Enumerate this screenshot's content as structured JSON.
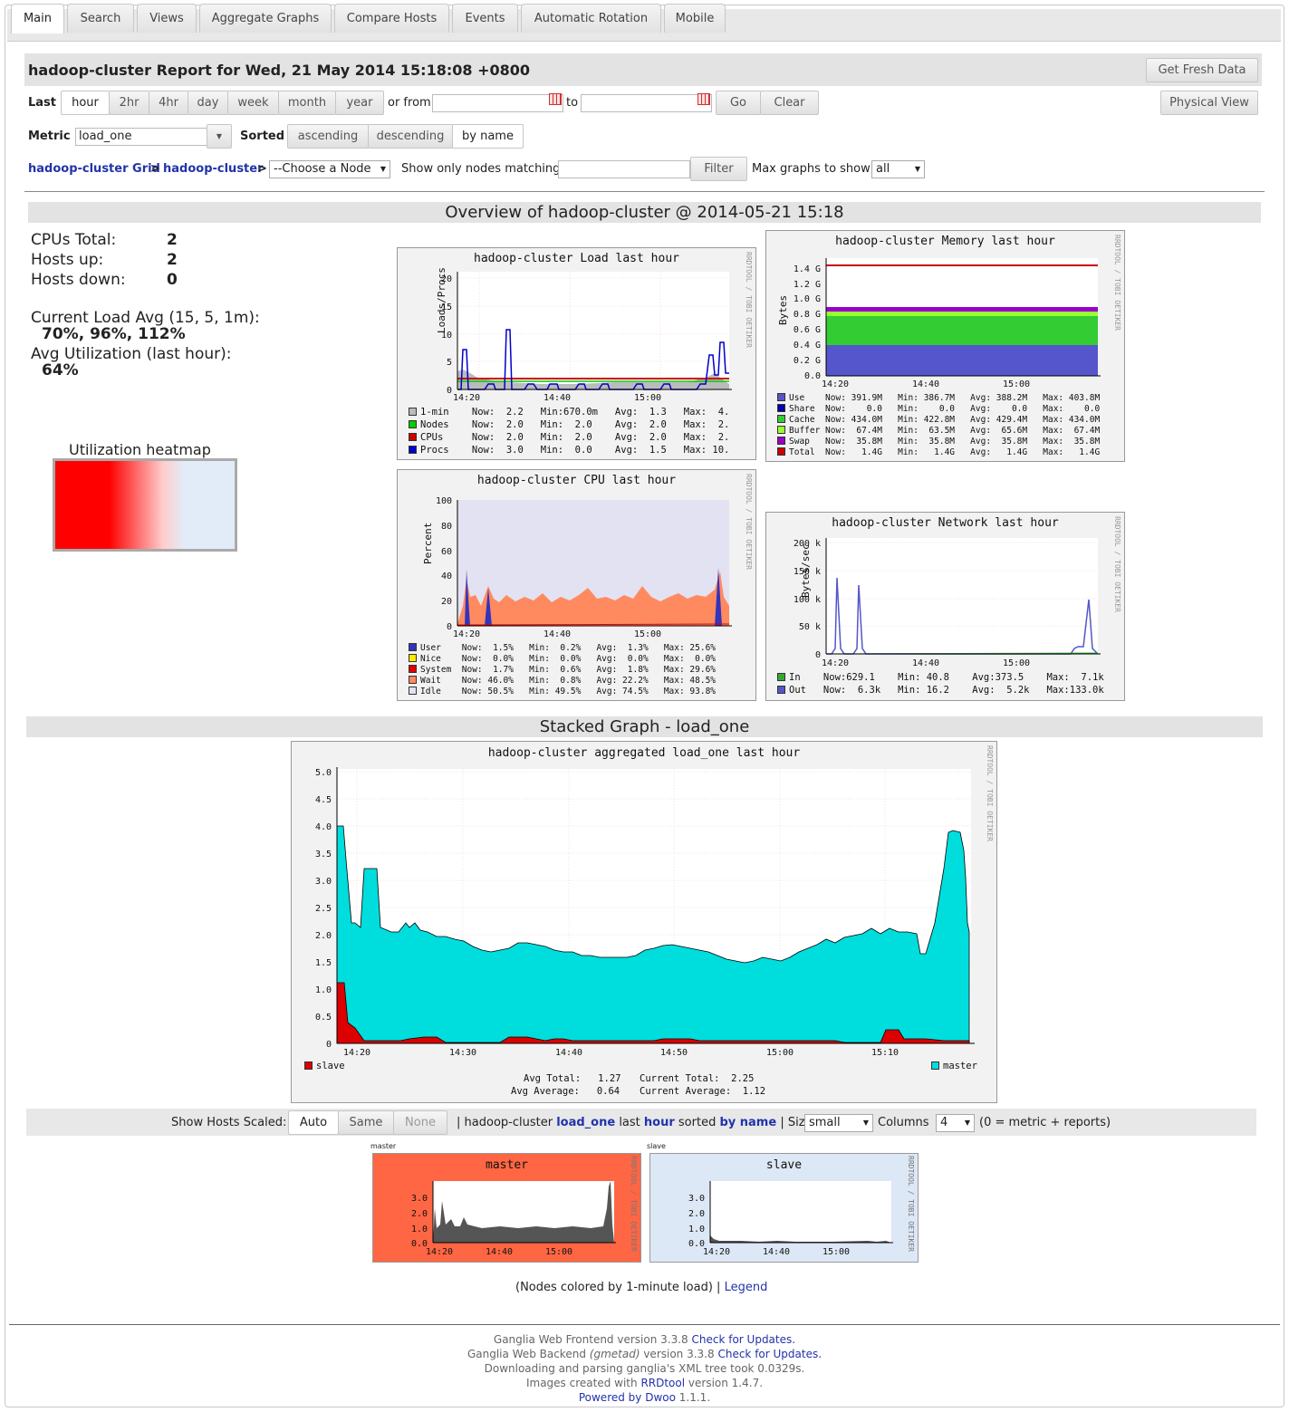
{
  "tabs": [
    "Main",
    "Search",
    "Views",
    "Aggregate Graphs",
    "Compare Hosts",
    "Events",
    "Automatic Rotation",
    "Mobile"
  ],
  "report_title": "hadoop-cluster Report for Wed, 21 May 2014 15:18:08 +0800",
  "get_fresh_data": "Get Fresh Data",
  "physical_view": "Physical View",
  "last_label": "Last",
  "ranges": [
    "hour",
    "2hr",
    "4hr",
    "day",
    "week",
    "month",
    "year"
  ],
  "or_from": "or from",
  "to": "to",
  "go": "Go",
  "clear": "Clear",
  "metric_label": "Metric",
  "metric_value": "load_one",
  "sorted_label": "Sorted",
  "sort_options": [
    "ascending",
    "descending",
    "by name"
  ],
  "breadcrumb": {
    "grid": "hadoop-cluster Grid",
    "sep": ">",
    "cluster": "hadoop-cluster",
    "node_select": "--Choose a Node"
  },
  "show_only": "Show only nodes matching",
  "filter": "Filter",
  "max_graphs_label": "Max graphs to show",
  "max_graphs_value": "all",
  "overview_title": "Overview of hadoop-cluster @ 2014-05-21 15:18",
  "stats": {
    "cpus_label": "CPUs Total:",
    "cpus": "2",
    "up_label": "Hosts up:",
    "up": "2",
    "down_label": "Hosts down:",
    "down": "0",
    "load_label": "Current Load Avg (15, 5, 1m):",
    "load": "70%, 96%, 112%",
    "util_label": "Avg Utilization (last hour):",
    "util": "64%"
  },
  "heatmap_label": "Utilization heatmap",
  "rrd_text": "RRDTOOL / TOBI OETIKER",
  "graphs": {
    "load": {
      "title": "hadoop-cluster Load last hour",
      "ylabel": "Loads/Procs",
      "yticks": [
        "20",
        "15",
        "10",
        "5",
        "0"
      ],
      "xticks": [
        "14:20",
        "14:40",
        "15:00"
      ],
      "legend": [
        {
          "name": "1-min",
          "color": "#bbbbbb",
          "text": "1-min    Now:  2.2   Min:670.0m   Avg:  1.3   Max:  4."
        },
        {
          "name": "Nodes",
          "color": "#00cc00",
          "text": "Nodes    Now:  2.0   Min:  2.0    Avg:  2.0   Max:  2."
        },
        {
          "name": "CPUs",
          "color": "#cc0000",
          "text": "CPUs     Now:  2.0   Min:  2.0    Avg:  2.0   Max:  2."
        },
        {
          "name": "Procs",
          "color": "#0000cc",
          "text": "Procs    Now:  3.0   Min:  0.0    Avg:  1.5   Max: 10."
        }
      ]
    },
    "memory": {
      "title": "hadoop-cluster Memory last hour",
      "ylabel": "Bytes",
      "yticks": [
        "1.4 G",
        "1.2 G",
        "1.0 G",
        "0.8 G",
        "0.6 G",
        "0.4 G",
        "0.2 G",
        "0.0"
      ],
      "xticks": [
        "14:20",
        "14:40",
        "15:00"
      ],
      "legend": [
        {
          "name": "Use",
          "color": "#5555cc",
          "text": "Use    Now: 391.9M   Min: 386.7M   Avg: 388.2M   Max: 403.8M"
        },
        {
          "name": "Share",
          "color": "#0000aa",
          "text": "Share  Now:    0.0   Min:    0.0   Avg:    0.0   Max:    0.0"
        },
        {
          "name": "Cache",
          "color": "#33cc33",
          "text": "Cache  Now: 434.0M   Min: 422.8M   Avg: 429.4M   Max: 434.0M"
        },
        {
          "name": "Buffer",
          "color": "#99ff33",
          "text": "Buffer Now:  67.4M   Min:  63.5M   Avg:  65.6M   Max:  67.4M"
        },
        {
          "name": "Swap",
          "color": "#9900cc",
          "text": "Swap   Now:  35.8M   Min:  35.8M   Avg:  35.8M   Max:  35.8M"
        },
        {
          "name": "Total",
          "color": "#cc0000",
          "text": "Total  Now:   1.4G   Min:   1.4G   Avg:   1.4G   Max:   1.4G"
        }
      ]
    },
    "cpu": {
      "title": "hadoop-cluster CPU last hour",
      "ylabel": "Percent",
      "yticks": [
        "100",
        "80",
        "60",
        "40",
        "20",
        "0"
      ],
      "xticks": [
        "14:20",
        "14:40",
        "15:00"
      ],
      "legend": [
        {
          "name": "User",
          "color": "#3333bb",
          "text": "User    Now:  1.5%   Min:  0.2%   Avg:  1.3%   Max: 25.6%"
        },
        {
          "name": "Nice",
          "color": "#ffea00",
          "text": "Nice    Now:  0.0%   Min:  0.0%   Avg:  0.0%   Max:  0.0%"
        },
        {
          "name": "System",
          "color": "#dd0000",
          "text": "System  Now:  1.7%   Min:  0.6%   Avg:  1.8%   Max: 29.6%"
        },
        {
          "name": "Wait",
          "color": "#ff8a60",
          "text": "Wait    Now: 46.0%   Min:  0.8%   Avg: 22.2%   Max: 48.5%"
        },
        {
          "name": "Idle",
          "color": "#e2e2f2",
          "text": "Idle    Now: 50.5%   Min: 49.5%   Avg: 74.5%   Max: 93.8%"
        }
      ]
    },
    "network": {
      "title": "hadoop-cluster Network last hour",
      "ylabel": "Bytes/sec",
      "yticks": [
        "200 k",
        "150 k",
        "100 k",
        "50 k",
        "0"
      ],
      "xticks": [
        "14:20",
        "14:40",
        "15:00"
      ],
      "legend": [
        {
          "name": "In",
          "color": "#33aa33",
          "text": "In    Now:629.1    Min: 40.8    Avg:373.5    Max:  7.1k"
        },
        {
          "name": "Out",
          "color": "#5555cc",
          "text": "Out   Now:  6.3k   Min: 16.2    Avg:  5.2k   Max:133.0k"
        }
      ]
    },
    "stacked": {
      "title": "hadoop-cluster aggregated load_one last hour",
      "yticks": [
        "5.0",
        "4.5",
        "4.0",
        "3.5",
        "3.0",
        "2.5",
        "2.0",
        "1.5",
        "1.0",
        "0.5",
        "0"
      ],
      "xticks": [
        "14:20",
        "14:30",
        "14:40",
        "14:50",
        "15:00",
        "15:10"
      ],
      "slave": "slave",
      "master": "master",
      "avg_total": "Avg Total:   1.27",
      "current_total": "Current Total:  2.25",
      "avg_avg": "Avg Average:   0.64",
      "current_avg": "Current Average:  1.12"
    }
  },
  "stacked_title": "Stacked Graph - load_one",
  "scale": {
    "label": "Show Hosts Scaled:",
    "options": [
      "Auto",
      "Same",
      "None"
    ],
    "sep": "|",
    "cluster": "hadoop-cluster",
    "metric": "load_one",
    "last": "last",
    "range": "hour",
    "sorted": "sorted",
    "by": "by name",
    "size_label": "| Size",
    "size": "small",
    "columns_label": "Columns",
    "columns": "4",
    "note": "(0 = metric + reports)"
  },
  "hosts": [
    {
      "small_label": "master",
      "title": "master",
      "yticks": [
        "3.0",
        "2.0",
        "1.0",
        "0.0"
      ],
      "xticks": [
        "14:20",
        "14:40",
        "15:00"
      ],
      "bg": "#ff6644"
    },
    {
      "small_label": "slave",
      "title": "slave",
      "yticks": [
        "3.0",
        "2.0",
        "1.0",
        "0.0"
      ],
      "xticks": [
        "14:20",
        "14:40",
        "15:00"
      ],
      "bg": "#dde8f6"
    }
  ],
  "nodes_colored": "(Nodes colored by 1-minute load)",
  "legend_sep": "|",
  "legend_link": "Legend",
  "footer": {
    "l1a": "Ganglia Web Frontend version 3.3.8",
    "l1b": "Check for Updates.",
    "l2a": "Ganglia Web Backend",
    "l2i": "(gmetad)",
    "l2b": "version 3.3.8",
    "l2c": "Check for Updates.",
    "l3": "Downloading and parsing ganglia's XML tree took 0.0329s.",
    "l4a": "Images created with",
    "l4b": "RRDtool",
    "l4c": "version 1.4.7.",
    "l5a": "Powered by Dwoo",
    "l5b": "1.1.1."
  }
}
